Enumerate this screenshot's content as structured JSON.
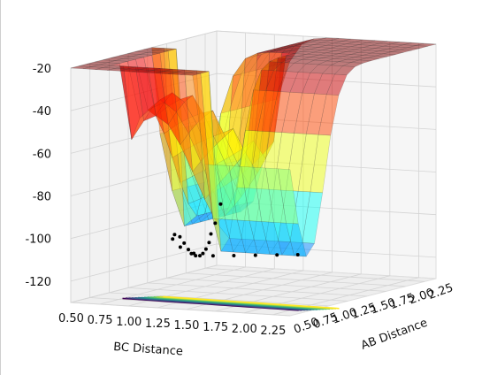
{
  "chart_data": {
    "type": "surface3d",
    "title": "",
    "xlabel": "BC Distance",
    "ylabel": "AB Distance",
    "zlabel": "",
    "x_ticks": [
      "0.50",
      "0.75",
      "1.00",
      "1.25",
      "1.50",
      "1.75",
      "2.00",
      "2.25"
    ],
    "y_ticks": [
      "0.50",
      "0.75",
      "1.00",
      "1.25",
      "1.50",
      "1.75",
      "2.00",
      "2.25"
    ],
    "z_ticks": [
      "-20",
      "-40",
      "-60",
      "-80",
      "-100",
      "-120"
    ],
    "xlim": [
      0.5,
      2.4
    ],
    "ylim": [
      0.5,
      2.4
    ],
    "zlim": [
      -130,
      -20
    ],
    "grid": true,
    "legend": "none",
    "colormap_surface": "jet",
    "colormap_contour": "viridis",
    "surface_alpha": 0.5,
    "trajectory_color": "#000000",
    "trajectory": [
      {
        "bc": 0.6,
        "ab": 2.3,
        "z": -100
      },
      {
        "bc": 0.62,
        "ab": 2.2,
        "z": -108
      },
      {
        "bc": 0.65,
        "ab": 2.1,
        "z": -112
      },
      {
        "bc": 0.7,
        "ab": 2.0,
        "z": -115
      },
      {
        "bc": 0.74,
        "ab": 1.9,
        "z": -117
      },
      {
        "bc": 0.78,
        "ab": 1.8,
        "z": -118
      },
      {
        "bc": 0.82,
        "ab": 1.7,
        "z": -118
      },
      {
        "bc": 0.85,
        "ab": 1.6,
        "z": -117
      },
      {
        "bc": 0.88,
        "ab": 1.5,
        "z": -115
      },
      {
        "bc": 0.92,
        "ab": 1.4,
        "z": -112
      },
      {
        "bc": 0.95,
        "ab": 1.3,
        "z": -108
      },
      {
        "bc": 0.98,
        "ab": 1.2,
        "z": -104
      },
      {
        "bc": 1.0,
        "ab": 1.1,
        "z": -102
      },
      {
        "bc": 1.05,
        "ab": 1.0,
        "z": -103
      },
      {
        "bc": 1.15,
        "ab": 0.95,
        "z": -106
      },
      {
        "bc": 1.3,
        "ab": 0.9,
        "z": -108
      },
      {
        "bc": 1.5,
        "ab": 0.85,
        "z": -108
      },
      {
        "bc": 1.7,
        "ab": 0.82,
        "z": -107
      },
      {
        "bc": 1.9,
        "ab": 0.8,
        "z": -106
      },
      {
        "bc": 2.1,
        "ab": 0.78,
        "z": -105
      },
      {
        "bc": 2.3,
        "ab": 0.75,
        "z": -104
      }
    ]
  }
}
